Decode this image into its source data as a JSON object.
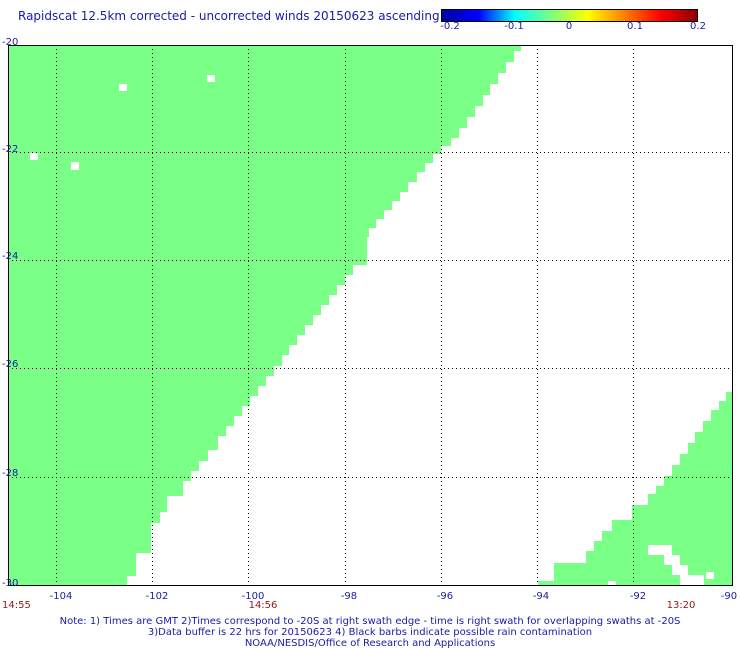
{
  "title": "Rapidscat 12.5km corrected - uncorrected winds 20150623 ascending",
  "colorbar": {
    "ticks": [
      "-0.2",
      "-0.1",
      "0",
      "0.1",
      "0.2"
    ],
    "min": -0.2,
    "max": 0.2,
    "colors": [
      "#0000a0",
      "#0000ff",
      "#00ffff",
      "#7aff80",
      "#ffff00",
      "#ff8000",
      "#ff0000",
      "#8b0000"
    ]
  },
  "map": {
    "fill_color": "#7aff87",
    "lat_range": [
      -30,
      -20
    ],
    "lon_range": [
      -105,
      -90
    ],
    "lat_labels": [
      "-20",
      "-22",
      "-24",
      "-26",
      "-28",
      "-30"
    ],
    "lon_labels": [
      "-104",
      "-102",
      "-100",
      "-98",
      "-96",
      "-94",
      "-92",
      "-90"
    ]
  },
  "times": [
    "14:55",
    "14:56",
    "13:20"
  ],
  "notes": [
    "Note: 1) Times are GMT 2)Times correspond to -20S at right swath edge - time is right swath for overlapping swaths at -20S",
    "3)Data buffer is 22 hrs for 20150623 4) Black barbs indicate possible rain contamination",
    "NOAA/NESDIS/Office of Research and Applications"
  ]
}
